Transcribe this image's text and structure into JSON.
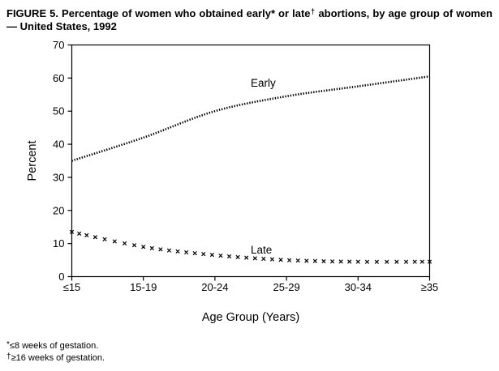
{
  "title": {
    "line1_before_sup": "FIGURE 5. Percentage of women who obtained early* or late",
    "line1_sup": "†",
    "line1_after_sup": " abortions, by age",
    "line2": "group of women — United States, 1992"
  },
  "chart_data": {
    "type": "line",
    "categories": [
      "≤15",
      "15-19",
      "20-24",
      "25-29",
      "30-34",
      "≥35"
    ],
    "series": [
      {
        "name": "Early",
        "style": "dotted-line",
        "values": [
          35,
          42,
          50,
          54.5,
          57.5,
          60.5
        ]
      },
      {
        "name": "Late",
        "style": "x-markers",
        "values": [
          13.5,
          9,
          6.5,
          5,
          4.5,
          4.5
        ]
      }
    ],
    "title": "",
    "xlabel": "Age Group (Years)",
    "ylabel": "Percent",
    "ylim": [
      0,
      70
    ],
    "yticks": [
      0,
      10,
      20,
      30,
      40,
      50,
      60,
      70
    ],
    "grid": false,
    "legend_position": "inline-labels-on-curves"
  },
  "footnotes": [
    {
      "symbol": "*",
      "text": "≤8 weeks of gestation."
    },
    {
      "symbol": "†",
      "text": "≥16 weeks of gestation."
    }
  ],
  "colors": {
    "line": "#000000",
    "background": "#ffffff",
    "text": "#000000"
  }
}
